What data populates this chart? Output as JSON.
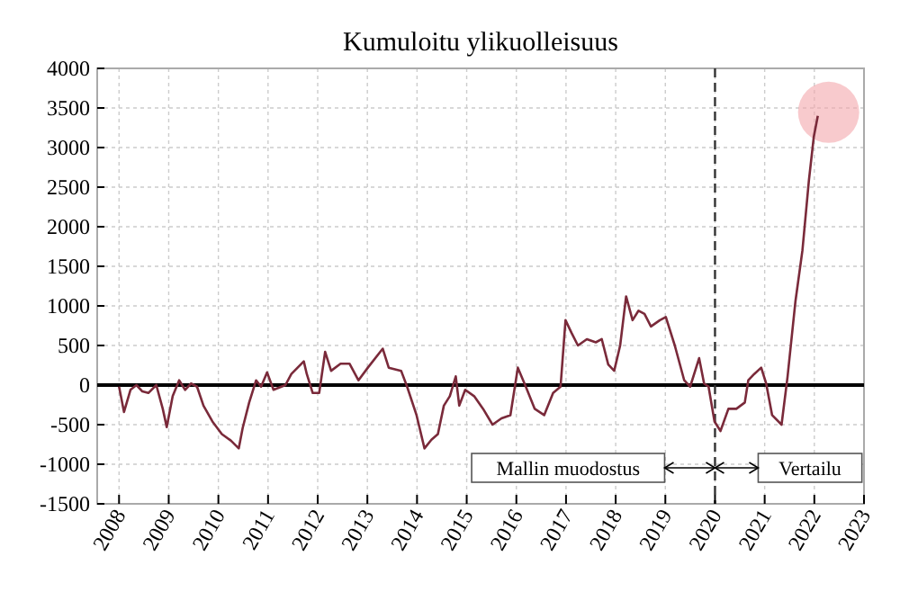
{
  "chart_data": {
    "type": "line",
    "title": "Kumuloitu ylikuolleisuus",
    "xlim": [
      2007.56,
      2023
    ],
    "xticks": [
      2008,
      2009,
      2010,
      2011,
      2012,
      2013,
      2014,
      2015,
      2016,
      2017,
      2018,
      2019,
      2020,
      2021,
      2022,
      2023
    ],
    "ylim": [
      -1500,
      4000
    ],
    "yticks": [
      -1500,
      -1000,
      -500,
      0,
      500,
      1000,
      1500,
      2000,
      2500,
      3000,
      3500,
      4000
    ],
    "grid": true,
    "line_style": "solid",
    "marker": "none",
    "series": [
      {
        "color": "#7a2a3a",
        "x": [
          2008.0,
          2008.1,
          2008.23,
          2008.35,
          2008.47,
          2008.59,
          2008.75,
          2008.88,
          2008.96,
          2009.08,
          2009.21,
          2009.33,
          2009.45,
          2009.57,
          2009.7,
          2009.88,
          2010.07,
          2010.25,
          2010.41,
          2010.49,
          2010.62,
          2010.76,
          2010.86,
          2010.98,
          2011.11,
          2011.35,
          2011.47,
          2011.72,
          2011.78,
          2011.9,
          2012.03,
          2012.15,
          2012.27,
          2012.46,
          2012.64,
          2012.82,
          2013.01,
          2013.31,
          2013.43,
          2013.68,
          2013.8,
          2013.99,
          2014.15,
          2014.29,
          2014.42,
          2014.54,
          2014.66,
          2014.78,
          2014.85,
          2014.97,
          2015.15,
          2015.33,
          2015.52,
          2015.7,
          2015.88,
          2016.03,
          2016.19,
          2016.37,
          2016.56,
          2016.74,
          2016.89,
          2016.99,
          2017.11,
          2017.24,
          2017.42,
          2017.6,
          2017.72,
          2017.85,
          2017.97,
          2018.09,
          2018.21,
          2018.34,
          2018.46,
          2018.58,
          2018.71,
          2018.89,
          2019.01,
          2019.19,
          2019.38,
          2019.5,
          2019.68,
          2019.78,
          2019.87,
          2019.99,
          2020.11,
          2020.27,
          2020.43,
          2020.6,
          2020.67,
          2020.79,
          2020.93,
          2021.03,
          2021.15,
          2021.34,
          2021.46,
          2021.62,
          2021.76,
          2021.89,
          2021.99,
          2022.07
        ],
        "values": [
          -20,
          -340,
          -60,
          0,
          -80,
          -100,
          0,
          -300,
          -530,
          -140,
          60,
          -60,
          20,
          -20,
          -260,
          -460,
          -620,
          -700,
          -800,
          -540,
          -220,
          60,
          -20,
          160,
          -60,
          0,
          140,
          300,
          140,
          -100,
          -100,
          420,
          180,
          270,
          270,
          60,
          220,
          460,
          220,
          180,
          -20,
          -380,
          -800,
          -690,
          -620,
          -260,
          -140,
          110,
          -260,
          -60,
          -140,
          -300,
          -500,
          -420,
          -380,
          220,
          -20,
          -300,
          -380,
          -100,
          -20,
          820,
          660,
          500,
          580,
          540,
          580,
          260,
          180,
          500,
          1120,
          820,
          940,
          900,
          740,
          820,
          860,
          500,
          60,
          -20,
          340,
          20,
          -20,
          -460,
          -580,
          -300,
          -300,
          -220,
          60,
          140,
          220,
          20,
          -380,
          -500,
          100,
          1060,
          1700,
          2580,
          3140,
          3400
        ]
      }
    ],
    "ref_lines": [
      {
        "axis": "y",
        "value": 0,
        "color": "#000000",
        "line_style": "solid"
      },
      {
        "axis": "x",
        "value": 2020,
        "color": "#333333",
        "line_style": "dashed"
      }
    ],
    "annotations": [
      "Mallin muodostus",
      "Vertailu"
    ]
  }
}
